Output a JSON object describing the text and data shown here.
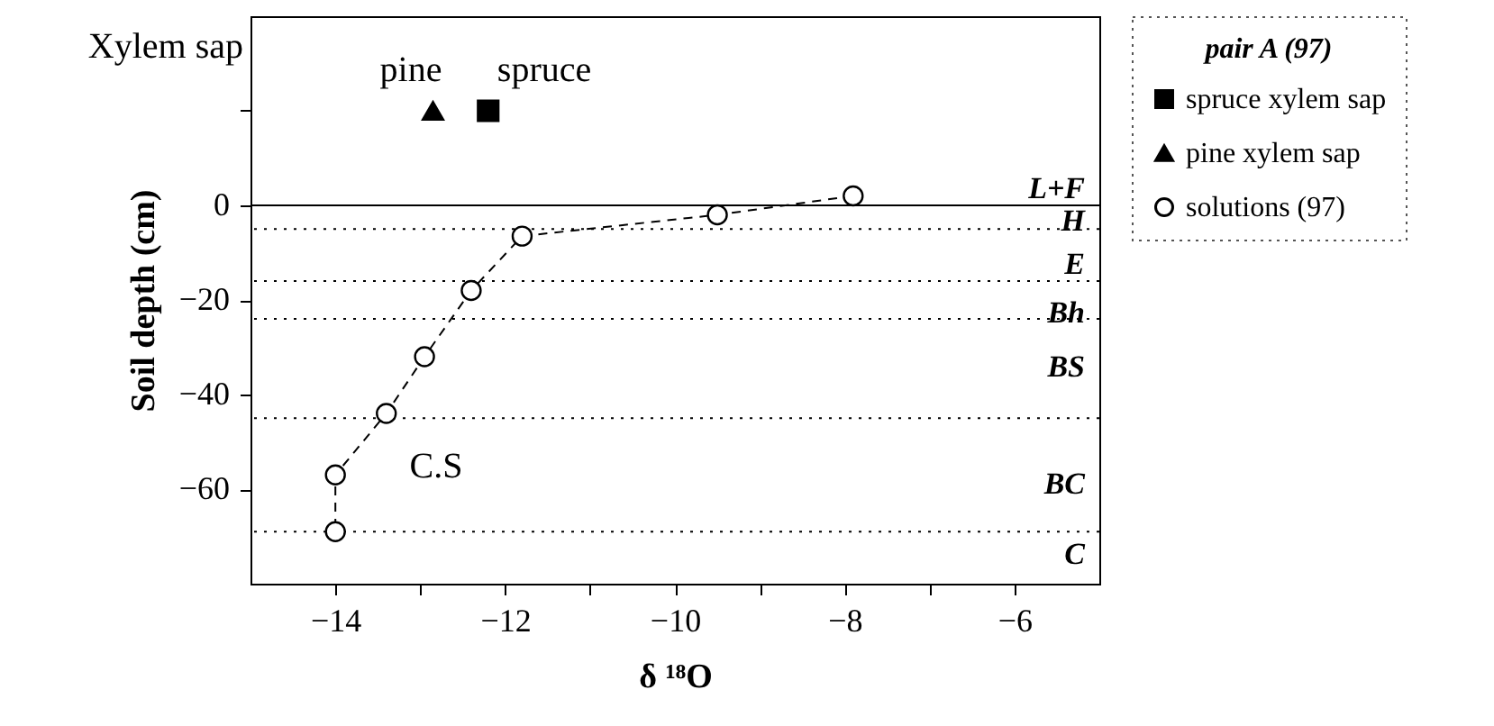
{
  "chart_data": {
    "type": "line",
    "xlabel": "δ ¹⁸O",
    "ylabel": "Soil depth (cm)",
    "legend_title": "pair A (97)",
    "legend": "right",
    "grid": false,
    "xlim": [
      -15,
      -5
    ],
    "xticks": [
      -14,
      {
        "value": -13,
        "label": null
      },
      -12,
      {
        "value": -11,
        "label": null
      },
      -10,
      {
        "value": -9,
        "label": null
      },
      -8,
      {
        "value": -7,
        "label": null
      },
      -6
    ],
    "ylim": [
      -80,
      40
    ],
    "yticks": [
      -60,
      -40,
      -20,
      0,
      {
        "value": 20,
        "label": null
      }
    ],
    "series": [
      {
        "name": "spruce xylem sap",
        "type": "scatter",
        "color": "#000000",
        "marker": "square",
        "x": [
          -12.2
        ],
        "values": [
          20
        ]
      },
      {
        "name": "pine xylem sap",
        "type": "scatter",
        "color": "#000000",
        "marker": "triangle",
        "x": [
          -12.85
        ],
        "values": [
          20
        ]
      },
      {
        "name": "solutions (97)",
        "color": "#000000",
        "marker": "circle",
        "line_style": "dashed",
        "x": [
          -7.9,
          -9.5,
          -11.8,
          -12.4,
          -12.95,
          -13.4,
          -14,
          -14
        ],
        "values": [
          2,
          -2,
          -6.5,
          -18,
          -32,
          -44,
          -57,
          -69
        ]
      }
    ],
    "ref_lines": [
      {
        "axis": "y",
        "value": 0,
        "line_style": "solid"
      },
      {
        "axis": "y",
        "value": -5,
        "line_style": "dotted"
      },
      {
        "axis": "y",
        "value": -16,
        "line_style": "dotted"
      },
      {
        "axis": "y",
        "value": -24,
        "line_style": "dotted"
      },
      {
        "axis": "y",
        "value": -45,
        "line_style": "dotted"
      },
      {
        "axis": "y",
        "value": -69,
        "line_style": "dotted"
      }
    ],
    "annotations": [
      "Xylem sap",
      "pine",
      "spruce",
      "C.S",
      "L+F",
      "H",
      "E",
      "Bh",
      "BS",
      "BC",
      "C"
    ]
  }
}
